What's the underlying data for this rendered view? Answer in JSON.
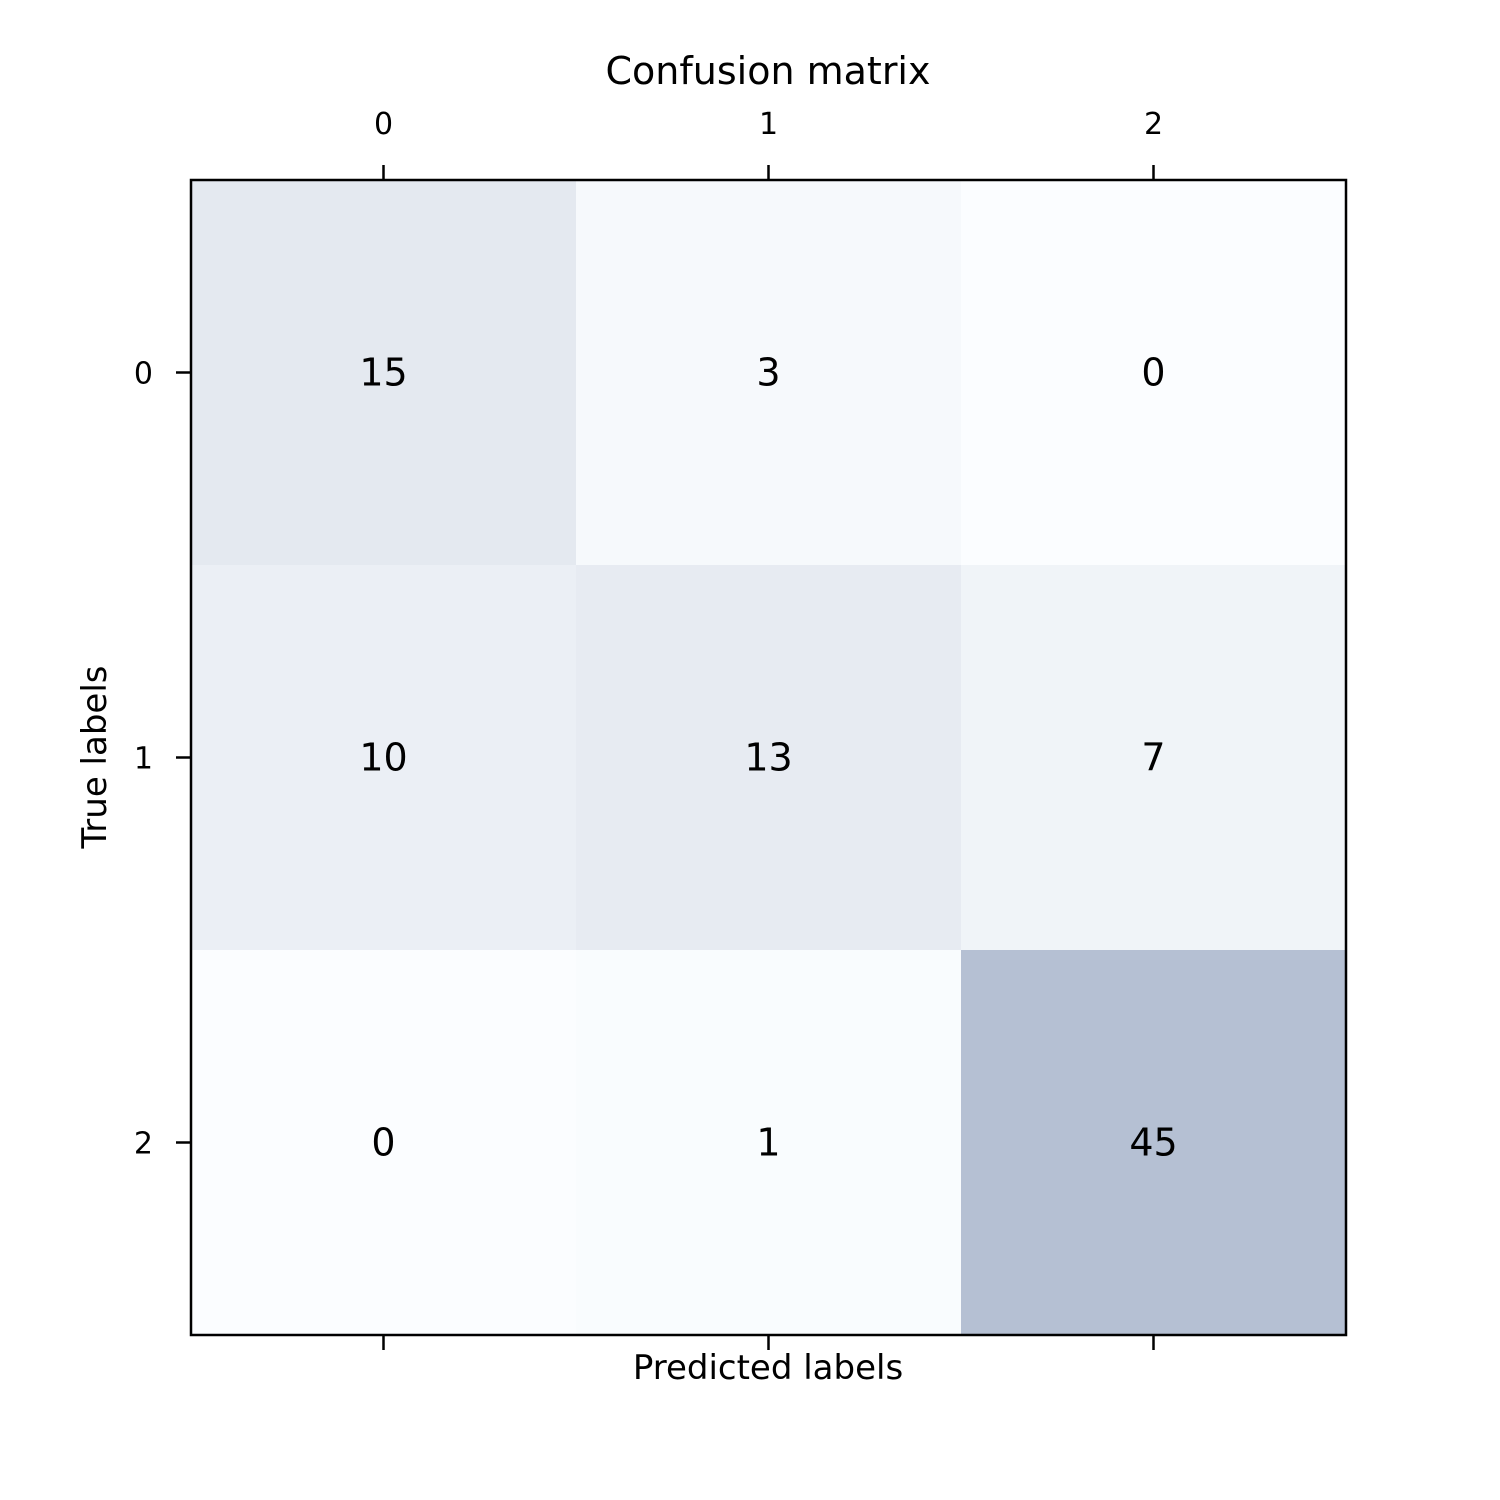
{
  "chart_data": {
    "type": "heatmap",
    "title": "Confusion matrix",
    "xlabel": "Predicted labels",
    "ylabel": "True labels",
    "x_categories": [
      "0",
      "1",
      "2"
    ],
    "y_categories": [
      "0",
      "1",
      "2"
    ],
    "values": [
      [
        15,
        3,
        0
      ],
      [
        10,
        13,
        7
      ],
      [
        0,
        1,
        45
      ]
    ],
    "colormap": "light blue (low) to slate gray-blue (high)",
    "color_low": "#fbfdff",
    "color_high": "#b5c0d3",
    "x_ticks_position": "top",
    "grid": false
  }
}
